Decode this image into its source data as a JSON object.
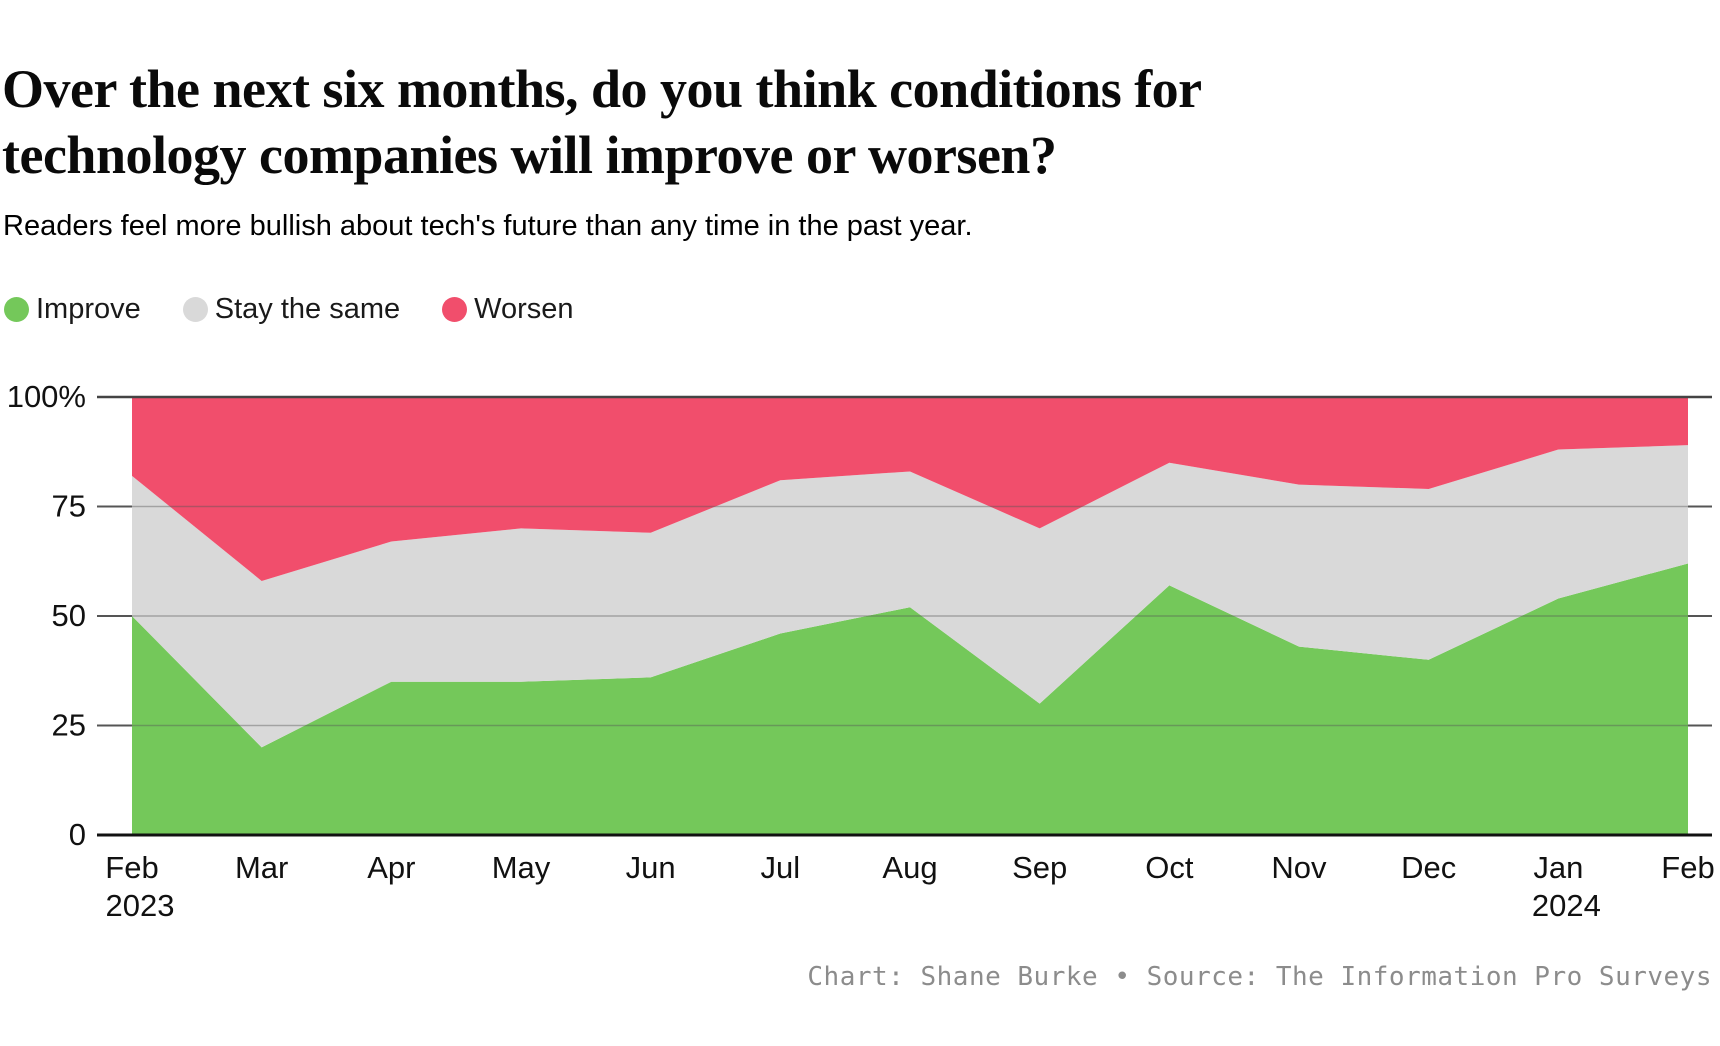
{
  "header": {
    "title_lines": [
      "Over the next six months, do you think conditions for",
      "technology companies will improve or worsen?"
    ],
    "subtitle": "Readers feel more bullish about tech's future than any time in the past year."
  },
  "footer": {
    "credit": "Chart: Shane Burke • Source: The Information Pro Surveys"
  },
  "chart_data": {
    "type": "area",
    "stacked": true,
    "title": "Over the next six months, do you think conditions for technology companies will improve or worsen?",
    "subtitle": "Readers feel more bullish about tech's future than any time in the past year.",
    "x_tick_labels": [
      {
        "label": "Feb",
        "sublabel": "2023"
      },
      {
        "label": "Mar"
      },
      {
        "label": "Apr"
      },
      {
        "label": "May"
      },
      {
        "label": "Jun"
      },
      {
        "label": "Jul"
      },
      {
        "label": "Aug"
      },
      {
        "label": "Sep"
      },
      {
        "label": "Oct"
      },
      {
        "label": "Nov"
      },
      {
        "label": "Dec"
      },
      {
        "label": "Jan",
        "sublabel": "2024"
      },
      {
        "label": "Feb"
      }
    ],
    "series": [
      {
        "name": "Improve",
        "color": "#74c85a",
        "values": [
          50,
          20,
          35,
          35,
          36,
          46,
          52,
          30,
          57,
          43,
          40,
          54,
          62
        ]
      },
      {
        "name": "Stay the same",
        "color": "#d9d9d9",
        "values": [
          32,
          38,
          32,
          35,
          33,
          35,
          31,
          40,
          28,
          37,
          39,
          34,
          27
        ]
      },
      {
        "name": "Worsen",
        "color": "#f14e6c",
        "values": [
          18,
          42,
          33,
          30,
          31,
          19,
          17,
          30,
          15,
          20,
          21,
          12,
          11
        ]
      }
    ],
    "y_ticks": [
      {
        "value": 100,
        "label": "100%"
      },
      {
        "value": 75,
        "label": "75"
      },
      {
        "value": 50,
        "label": "50"
      },
      {
        "value": 25,
        "label": "25"
      },
      {
        "value": 0,
        "label": "0"
      }
    ],
    "ylim": [
      0,
      100
    ],
    "unit": "%",
    "grid": true,
    "legend_position": "top-left"
  }
}
